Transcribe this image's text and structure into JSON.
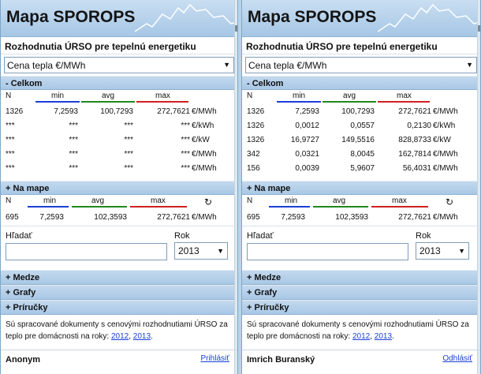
{
  "panels": [
    {
      "title": "Mapa SPOROPS",
      "subtitle": "Rozhodnutia ÚRSO pre tepelnú energetiku",
      "select_value": "Cena tepla €/MWh",
      "celkom": {
        "label": "- Celkom",
        "cols": {
          "n": "N",
          "min": "min",
          "avg": "avg",
          "max": "max"
        },
        "rows": [
          {
            "n": "1326",
            "min": "7,2593",
            "avg": "100,7293",
            "max": "272,7621",
            "unit": "€/MWh"
          },
          {
            "n": "***",
            "min": "***",
            "avg": "***",
            "max": "***",
            "unit": "€/kWh"
          },
          {
            "n": "***",
            "min": "***",
            "avg": "***",
            "max": "***",
            "unit": "€/kW"
          },
          {
            "n": "***",
            "min": "***",
            "avg": "***",
            "max": "***",
            "unit": "€/MWh"
          },
          {
            "n": "***",
            "min": "***",
            "avg": "***",
            "max": "***",
            "unit": "€/MWh"
          }
        ]
      },
      "na_mape": {
        "label": "+ Na mape",
        "cols": {
          "n": "N",
          "min": "min",
          "avg": "avg",
          "max": "max"
        },
        "reload": "↻",
        "row": {
          "n": "695",
          "min": "7,2593",
          "avg": "102,3593",
          "max": "272,7621",
          "unit": "€/MWh"
        }
      },
      "search": {
        "label": "Hľadať",
        "value": "",
        "rok_label": "Rok",
        "rok_value": "2013"
      },
      "sections": {
        "medze": "+ Medze",
        "grafy": "+ Grafy",
        "prirucky": "+ Príručky"
      },
      "info": {
        "text": "Sú spracované dokumenty s cenovými rozhodnutiami ÚRSO za teplo pre domácnosti na roky:",
        "year1": "2012",
        "sep": ",",
        "year2": "2013",
        "end": "."
      },
      "user": {
        "name": "Anonym",
        "link": "Prihlásiť"
      }
    },
    {
      "title": "Mapa SPOROPS",
      "subtitle": "Rozhodnutia ÚRSO pre tepelnú energetiku",
      "select_value": "Cena tepla €/MWh",
      "celkom": {
        "label": "- Celkom",
        "cols": {
          "n": "N",
          "min": "min",
          "avg": "avg",
          "max": "max"
        },
        "rows": [
          {
            "n": "1326",
            "min": "7,2593",
            "avg": "100,7293",
            "max": "272,7621",
            "unit": "€/MWh"
          },
          {
            "n": "1326",
            "min": "0,0012",
            "avg": "0,0557",
            "max": "0,2130",
            "unit": "€/kWh"
          },
          {
            "n": "1326",
            "min": "16,9727",
            "avg": "149,5516",
            "max": "828,8733",
            "unit": "€/kW"
          },
          {
            "n": "342",
            "min": "0,0321",
            "avg": "8,0045",
            "max": "162,7814",
            "unit": "€/MWh"
          },
          {
            "n": "156",
            "min": "0,0039",
            "avg": "5,9607",
            "max": "56,4031",
            "unit": "€/MWh"
          }
        ]
      },
      "na_mape": {
        "label": "+ Na mape",
        "cols": {
          "n": "N",
          "min": "min",
          "avg": "avg",
          "max": "max"
        },
        "reload": "↻",
        "row": {
          "n": "695",
          "min": "7,2593",
          "avg": "102,3593",
          "max": "272,7621",
          "unit": "€/MWh"
        }
      },
      "search": {
        "label": "Hľadať",
        "value": "",
        "rok_label": "Rok",
        "rok_value": "2013"
      },
      "sections": {
        "medze": "+ Medze",
        "grafy": "+ Grafy",
        "prirucky": "+ Príručky"
      },
      "info": {
        "text": "Sú spracované dokumenty s cenovými rozhodnutiami ÚRSO za teplo pre domácnosti na roky:",
        "year1": "2012",
        "sep": ",",
        "year2": "2013",
        "end": "."
      },
      "user": {
        "name": "Imrich Buranský",
        "link": "Odhlásiť"
      }
    }
  ]
}
